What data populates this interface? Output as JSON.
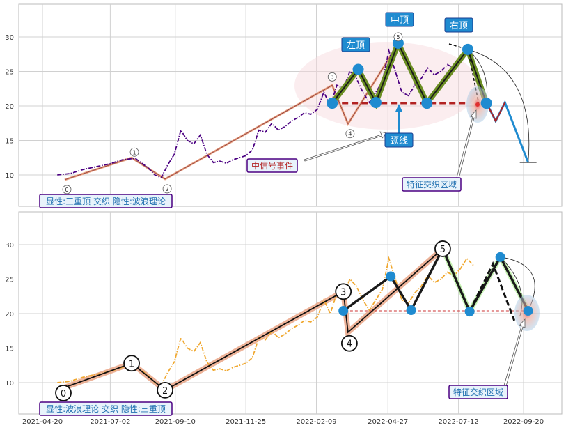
{
  "chart_data": [
    {
      "type": "line",
      "panel": "top",
      "ylim": [
        5,
        35
      ],
      "yticks": [
        10,
        15,
        20,
        25,
        30
      ],
      "grid": true,
      "price_series": {
        "color": "#4b0082",
        "style": "dash-dot",
        "x": [
          "2021-05-06",
          "2021-05-20",
          "2021-06-03",
          "2021-06-17",
          "2021-07-01",
          "2021-07-15",
          "2021-07-29",
          "2021-08-12",
          "2021-08-19",
          "2021-08-26",
          "2021-09-02",
          "2021-09-09",
          "2021-09-16",
          "2021-09-23",
          "2021-09-30",
          "2021-10-07",
          "2021-10-14",
          "2021-10-21",
          "2021-10-28",
          "2021-11-04",
          "2021-11-11",
          "2021-11-18",
          "2021-11-25",
          "2021-12-02",
          "2021-12-09",
          "2021-12-16",
          "2021-12-23",
          "2021-12-30",
          "2022-01-06",
          "2022-01-13",
          "2022-01-20",
          "2022-01-27",
          "2022-02-03",
          "2022-02-10",
          "2022-02-17",
          "2022-02-24",
          "2022-03-03",
          "2022-03-10",
          "2022-03-17",
          "2022-03-24",
          "2022-03-31",
          "2022-04-07",
          "2022-04-14",
          "2022-04-21",
          "2022-04-28",
          "2022-05-05",
          "2022-05-12",
          "2022-05-19",
          "2022-05-26",
          "2022-06-02",
          "2022-06-09",
          "2022-06-16",
          "2022-06-23",
          "2022-06-30",
          "2022-07-07",
          "2022-07-14",
          "2022-07-21",
          "2022-07-28"
        ],
        "y": [
          10.0,
          10.2,
          10.8,
          11.2,
          11.6,
          12.2,
          12.4,
          11.0,
          10.0,
          9.6,
          11.5,
          13.0,
          16.5,
          15.0,
          14.5,
          15.8,
          13.0,
          11.8,
          12.0,
          11.7,
          12.2,
          12.5,
          12.8,
          13.6,
          16.5,
          16.2,
          17.5,
          16.5,
          17.0,
          17.8,
          18.3,
          19.0,
          18.8,
          19.5,
          22.0,
          20.0,
          23.0,
          22.5,
          25.0,
          24.0,
          22.0,
          20.5,
          22.0,
          23.5,
          28.0,
          25.0,
          22.0,
          21.5,
          23.0,
          24.0,
          25.5,
          24.5,
          25.0,
          26.0,
          25.5,
          26.5,
          28.0,
          27.0
        ]
      },
      "wave_points": [
        {
          "label": "0",
          "x": "2021-05-14",
          "y": 9.3
        },
        {
          "label": "1",
          "x": "2021-07-25",
          "y": 12.5
        },
        {
          "label": "2",
          "x": "2021-08-30",
          "y": 9.4
        },
        {
          "label": "3",
          "x": "2022-02-26",
          "y": 23.0
        },
        {
          "label": "4",
          "x": "2022-03-15",
          "y": 17.4
        },
        {
          "label": "5",
          "x": "2022-05-08",
          "y": 29.0
        }
      ],
      "pattern_points": {
        "x": [
          "2022-02-26",
          "2022-03-26",
          "2022-04-14",
          "2022-05-08",
          "2022-06-08",
          "2022-07-22",
          "2022-08-11"
        ],
        "y": [
          20.4,
          25.3,
          20.5,
          29.1,
          20.4,
          28.2,
          20.4
        ]
      },
      "neckline": {
        "y": 20.4,
        "x_start": "2022-02-26",
        "x_end": "2022-07-22"
      },
      "projection": {
        "x": [
          "2022-08-11",
          "2022-08-21",
          "2022-08-31",
          "2022-09-25"
        ],
        "y": [
          20.5,
          17.8,
          20.5,
          11.8
        ]
      },
      "annotations": {
        "left_top": "左顶",
        "middle_top": "中顶",
        "right_top": "右顶",
        "neckline": "颈线",
        "signal_event": "中信号事件",
        "feature_zone": "特征交织区域",
        "caption": "显性:三重顶 交织 隐性:波浪理论"
      },
      "colors": {
        "pattern_green": "#6b8e23",
        "marker_blue": "#1f8bd0",
        "neckline_red": "#b22222",
        "label_bg": "#1f8bd0",
        "label_text": "#ffffff",
        "caption_border": "#4b0082"
      }
    },
    {
      "type": "line",
      "panel": "bottom",
      "ylim": [
        5,
        35
      ],
      "yticks": [
        10,
        15,
        20,
        25,
        30
      ],
      "grid": true,
      "xticks": [
        "2021-04-20",
        "2021-07-02",
        "2021-09-10",
        "2021-11-25",
        "2022-02-09",
        "2022-04-27",
        "2022-07-12",
        "2022-09-20"
      ],
      "price_series": {
        "color": "#f0a830",
        "style": "dash-dot",
        "x": [
          "2021-05-06",
          "2021-05-20",
          "2021-06-03",
          "2021-06-17",
          "2021-07-01",
          "2021-07-15",
          "2021-07-29",
          "2021-08-12",
          "2021-08-19",
          "2021-08-26",
          "2021-09-02",
          "2021-09-09",
          "2021-09-16",
          "2021-09-23",
          "2021-09-30",
          "2021-10-07",
          "2021-10-14",
          "2021-10-21",
          "2021-10-28",
          "2021-11-04",
          "2021-11-11",
          "2021-11-18",
          "2021-11-25",
          "2021-12-02",
          "2021-12-09",
          "2021-12-16",
          "2021-12-23",
          "2021-12-30",
          "2022-01-06",
          "2022-01-13",
          "2022-01-20",
          "2022-01-27",
          "2022-02-03",
          "2022-02-10",
          "2022-02-17",
          "2022-02-24",
          "2022-03-03",
          "2022-03-10",
          "2022-03-17",
          "2022-03-24",
          "2022-03-31",
          "2022-04-07",
          "2022-04-14",
          "2022-04-21",
          "2022-04-28",
          "2022-05-05",
          "2022-05-12",
          "2022-05-19",
          "2022-05-26",
          "2022-06-02",
          "2022-06-09",
          "2022-06-16",
          "2022-06-23",
          "2022-06-30",
          "2022-07-07",
          "2022-07-14",
          "2022-07-21",
          "2022-07-28"
        ],
        "y": [
          10.0,
          10.2,
          10.8,
          11.2,
          11.6,
          12.2,
          12.4,
          11.0,
          10.0,
          9.6,
          11.5,
          13.0,
          16.5,
          15.0,
          14.5,
          15.8,
          13.0,
          11.8,
          12.0,
          11.7,
          12.2,
          12.5,
          12.8,
          13.6,
          16.5,
          16.2,
          17.5,
          16.5,
          17.0,
          17.8,
          18.3,
          19.0,
          18.8,
          19.5,
          22.0,
          20.0,
          23.0,
          22.5,
          25.0,
          24.0,
          22.0,
          20.5,
          22.0,
          23.5,
          28.0,
          25.0,
          22.0,
          21.5,
          23.0,
          24.0,
          25.5,
          24.5,
          25.0,
          26.0,
          25.5,
          26.5,
          28.0,
          27.0
        ]
      },
      "wave_points": [
        {
          "label": "0",
          "x": "2021-05-14",
          "y": 9.3
        },
        {
          "label": "1",
          "x": "2021-07-25",
          "y": 12.8
        },
        {
          "label": "2",
          "x": "2021-08-30",
          "y": 8.9
        },
        {
          "label": "3",
          "x": "2022-03-10",
          "y": 23.2
        },
        {
          "label": "4",
          "x": "2022-03-15",
          "y": 17.3
        },
        {
          "label": "5",
          "x": "2022-06-25",
          "y": 29.4
        }
      ],
      "pattern_points": {
        "x": [
          "2022-03-10",
          "2022-04-30",
          "2022-05-22",
          "2022-06-25",
          "2022-07-24",
          "2022-08-26",
          "2022-09-25"
        ],
        "y": [
          20.4,
          25.4,
          20.5,
          29.4,
          20.3,
          28.2,
          20.4
        ]
      },
      "pattern_dashed": {
        "x": [
          "2022-07-24",
          "2022-08-18",
          "2022-09-10"
        ],
        "y": [
          20.3,
          27.2,
          19.0
        ]
      },
      "neckline": {
        "y": 20.4,
        "x_start": "2022-03-12",
        "x_end": "2022-09-25"
      },
      "annotations": {
        "feature_zone": "特征交织区域",
        "caption": "显性:波浪理论 交织 隐性:三重顶"
      },
      "colors": {
        "pattern_black": "#1a1a1a",
        "marker_blue": "#1f8bd0",
        "neckline_red": "#cc3333",
        "wave_highlight": "#e8a080",
        "caption_border": "#4b0082"
      }
    }
  ]
}
